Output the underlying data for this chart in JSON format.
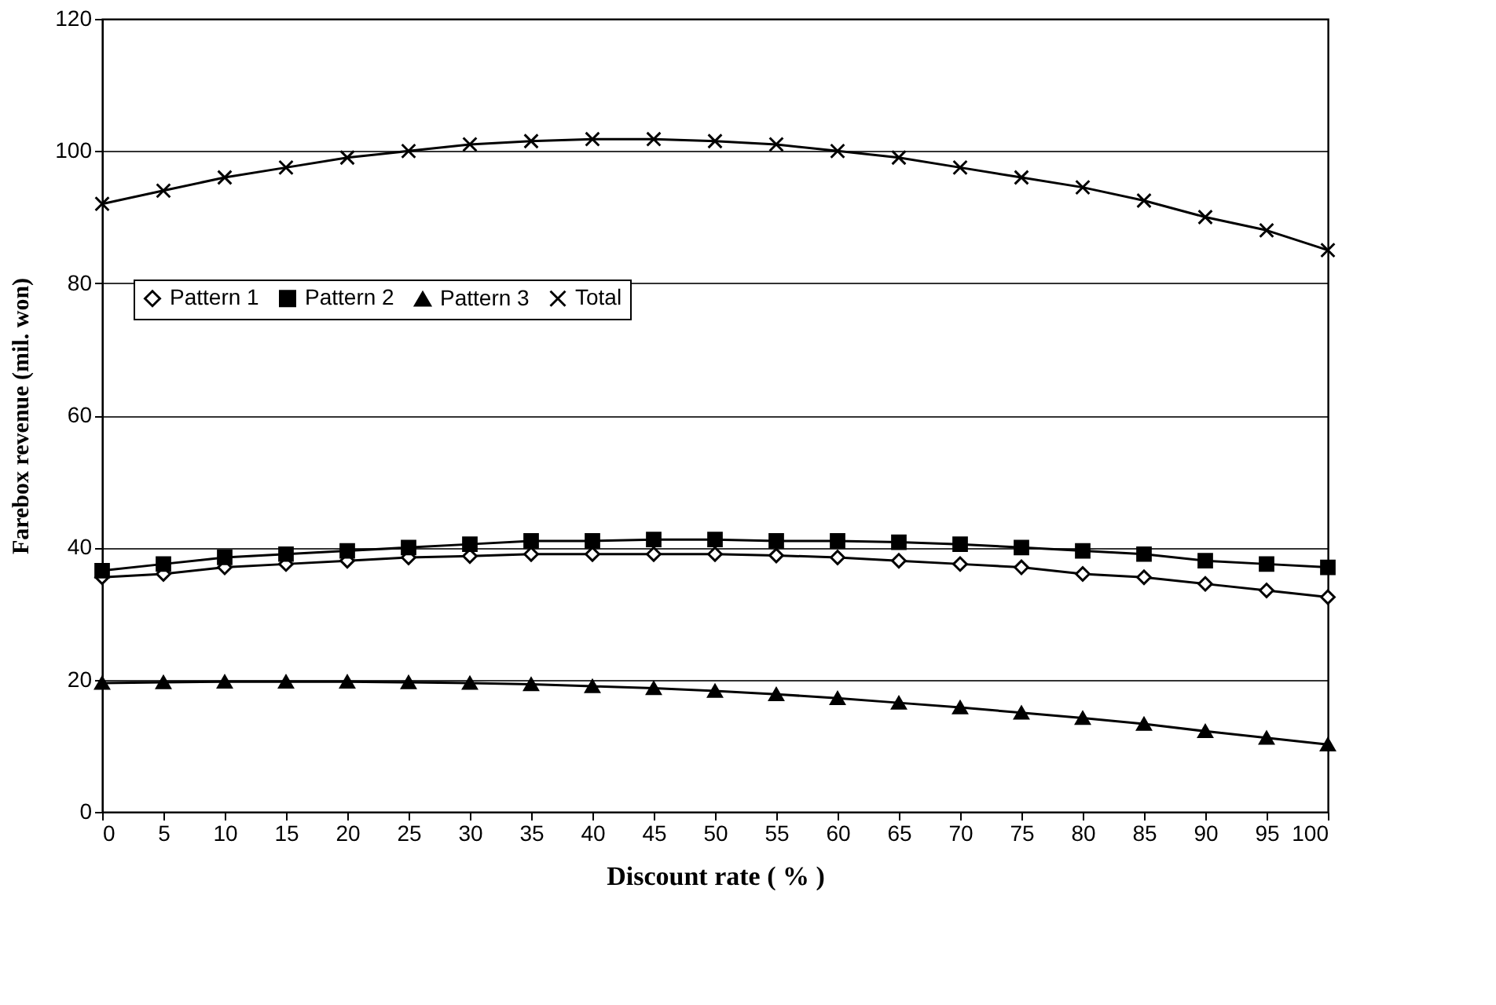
{
  "chart_data": {
    "type": "line",
    "xlabel": "Discount rate ( % )",
    "ylabel": "Farebox revenue (mil. won)",
    "x": [
      0,
      5,
      10,
      15,
      20,
      25,
      30,
      35,
      40,
      45,
      50,
      55,
      60,
      65,
      70,
      75,
      80,
      85,
      90,
      95,
      100
    ],
    "xlim": [
      0,
      100
    ],
    "xticks": [
      0,
      5,
      10,
      15,
      20,
      25,
      30,
      35,
      40,
      45,
      50,
      55,
      60,
      65,
      70,
      75,
      80,
      85,
      90,
      95,
      100
    ],
    "ylim": [
      0,
      120
    ],
    "yticks": [
      0,
      20,
      40,
      60,
      80,
      100,
      120
    ],
    "grid": "y",
    "legend": "top left",
    "series": [
      {
        "name": "Pattern 1",
        "color": "#000000",
        "marker": "diamond",
        "values": [
          35.5,
          36,
          37,
          37.5,
          38,
          38.5,
          38.7,
          39,
          39,
          39,
          39,
          38.8,
          38.5,
          38,
          37.5,
          37,
          36,
          35.5,
          34.5,
          33.5,
          32.5
        ]
      },
      {
        "name": "Pattern 2",
        "color": "#000000",
        "marker": "square",
        "values": [
          36.5,
          37.5,
          38.5,
          39,
          39.5,
          40,
          40.5,
          41,
          41,
          41.2,
          41.2,
          41,
          41,
          40.8,
          40.5,
          40,
          39.5,
          39,
          38,
          37.5,
          37
        ]
      },
      {
        "name": "Pattern 3",
        "color": "#000000",
        "marker": "triangle",
        "values": [
          19.5,
          19.6,
          19.7,
          19.7,
          19.7,
          19.6,
          19.5,
          19.3,
          19,
          18.7,
          18.3,
          17.8,
          17.2,
          16.5,
          15.8,
          15,
          14.2,
          13.3,
          12.2,
          11.2,
          10.2
        ]
      },
      {
        "name": "Total",
        "color": "#000000",
        "marker": "cross",
        "values": [
          92,
          94,
          96,
          97.5,
          99,
          100,
          101,
          101.5,
          101.8,
          101.8,
          101.5,
          101,
          100,
          99,
          97.5,
          96,
          94.5,
          92.5,
          90,
          88,
          85
        ]
      }
    ]
  }
}
